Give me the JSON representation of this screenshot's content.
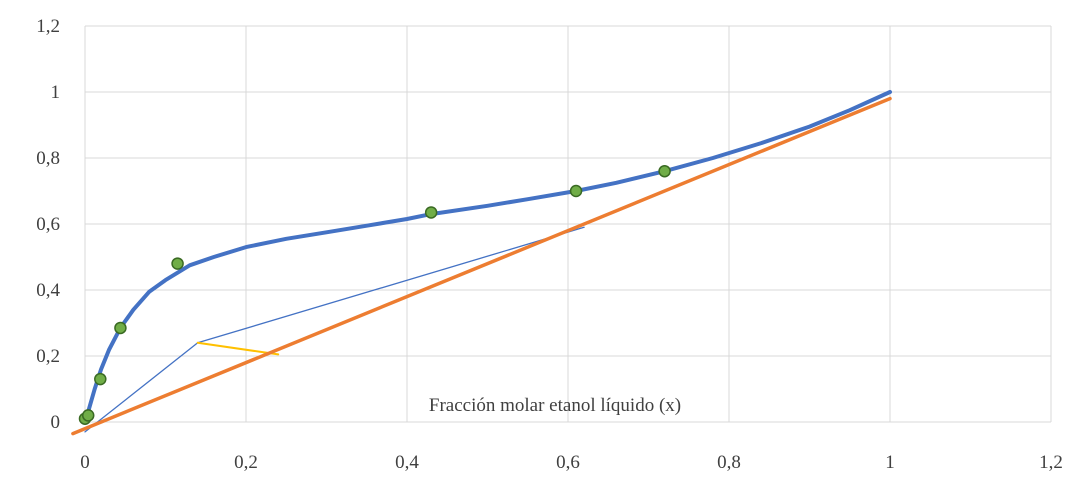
{
  "chart_data": {
    "type": "line",
    "title": "",
    "xlabel": "Fracción molar etanol líquido (x)",
    "ylabel": "",
    "xlim": [
      0,
      1.2
    ],
    "ylim": [
      0,
      1.2
    ],
    "x_ticks": [
      "0",
      "0,2",
      "0,4",
      "0,6",
      "0,8",
      "1",
      "1,2"
    ],
    "y_ticks": [
      "0",
      "0,2",
      "0,4",
      "0,6",
      "0,8",
      "1",
      "1,2"
    ],
    "grid": true,
    "legend": "none",
    "colors": {
      "equilibrium": "#4472c4",
      "diagonal": "#ed7d31",
      "points_fill": "#70ad47",
      "points_edge": "#3a6a23",
      "operating": "#4472c4",
      "step": "#ffc000",
      "grid": "#d9d9d9"
    },
    "series": [
      {
        "type": "scatter",
        "x": [
          0.0,
          0.004,
          0.019,
          0.044,
          0.115,
          0.43,
          0.61,
          0.72
        ],
        "y": [
          0.01,
          0.02,
          0.13,
          0.285,
          0.48,
          0.635,
          0.7,
          0.76
        ]
      },
      {
        "type": "line",
        "x": [
          0.0,
          0.005,
          0.012,
          0.02,
          0.03,
          0.044,
          0.06,
          0.08,
          0.1,
          0.13,
          0.16,
          0.2,
          0.25,
          0.3,
          0.35,
          0.4,
          0.43,
          0.5,
          0.55,
          0.61,
          0.66,
          0.72,
          0.78,
          0.84,
          0.9,
          0.95,
          1.0
        ],
        "y": [
          0.0,
          0.04,
          0.1,
          0.16,
          0.22,
          0.285,
          0.34,
          0.395,
          0.43,
          0.475,
          0.5,
          0.53,
          0.555,
          0.575,
          0.595,
          0.615,
          0.63,
          0.655,
          0.675,
          0.7,
          0.725,
          0.76,
          0.8,
          0.845,
          0.895,
          0.945,
          1.0
        ]
      },
      {
        "type": "line",
        "x": [
          -0.015,
          1.0
        ],
        "y": [
          -0.035,
          0.98
        ]
      },
      {
        "type": "line",
        "x": [
          0.0,
          0.14,
          0.62
        ],
        "y": [
          -0.03,
          0.24,
          0.59
        ]
      },
      {
        "type": "line",
        "x": [
          0.14,
          0.24
        ],
        "y": [
          0.24,
          0.205
        ]
      }
    ]
  }
}
